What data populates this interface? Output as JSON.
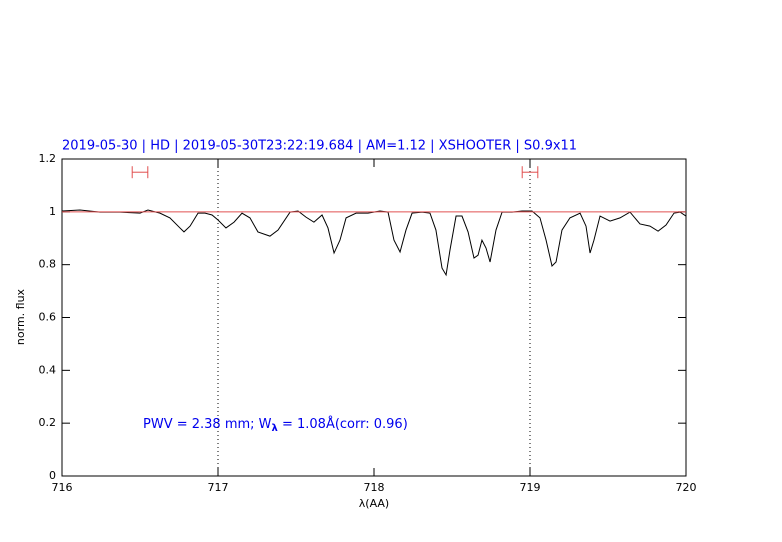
{
  "chart_data": {
    "type": "line",
    "title": "2019-05-30 | HD | 2019-05-30T23:22:19.684 | AM=1.12 | XSHOOTER | S0.9x11",
    "x_label": "λ(AA)",
    "y_label": "norm. flux",
    "annotation": [
      "PWV = 2.38 mm; W",
      "λ",
      " = 1.08Å(corr: 0.96)"
    ],
    "xlim": [
      716,
      720
    ],
    "ylim": [
      0,
      1.2
    ],
    "xticks": [
      716,
      717,
      718,
      719,
      720
    ],
    "yticks": [
      0,
      0.2,
      0.4,
      0.6,
      0.8,
      1,
      1.2
    ],
    "vlines": [
      717,
      719
    ],
    "intervals": [
      {
        "x": [
          716.45,
          716.55
        ],
        "y": 1.15,
        "color": "#e05050"
      },
      {
        "x": [
          718.95,
          719.05
        ],
        "y": 1.15,
        "color": "#e05050"
      }
    ],
    "series": [
      {
        "color": "#000000",
        "x": [
          716.0,
          716.115,
          716.244,
          716.372,
          716.5,
          716.551,
          716.628,
          716.692,
          716.756,
          716.782,
          716.821,
          716.872,
          716.917,
          716.962,
          717.0,
          717.051,
          717.103,
          717.154,
          717.205,
          717.256,
          717.333,
          717.385,
          717.462,
          717.513,
          717.564,
          717.615,
          717.667,
          717.705,
          717.744,
          717.782,
          717.821,
          717.885,
          717.962,
          718.038,
          718.09,
          718.128,
          718.167,
          718.205,
          718.244,
          718.308,
          718.359,
          718.397,
          718.436,
          718.462,
          718.487,
          718.526,
          718.564,
          718.603,
          718.641,
          718.667,
          718.692,
          718.718,
          718.744,
          718.782,
          718.821,
          718.885,
          718.949,
          719.013,
          719.064,
          719.103,
          719.141,
          719.167,
          719.205,
          719.256,
          719.321,
          719.359,
          719.385,
          719.41,
          719.449,
          719.513,
          719.577,
          719.641,
          719.705,
          719.769,
          719.821,
          719.872,
          719.923,
          719.962,
          720.0
        ],
        "values": [
          1.003,
          1.007,
          0.999,
          0.999,
          0.995,
          1.007,
          0.995,
          0.977,
          0.939,
          0.924,
          0.946,
          0.995,
          0.995,
          0.988,
          0.969,
          0.939,
          0.961,
          0.995,
          0.977,
          0.924,
          0.908,
          0.931,
          0.999,
          1.003,
          0.98,
          0.961,
          0.988,
          0.939,
          0.844,
          0.893,
          0.977,
          0.995,
          0.995,
          1.003,
          0.999,
          0.893,
          0.848,
          0.931,
          0.995,
          0.999,
          0.995,
          0.931,
          0.787,
          0.761,
          0.855,
          0.984,
          0.984,
          0.924,
          0.825,
          0.836,
          0.893,
          0.863,
          0.81,
          0.931,
          0.999,
          0.999,
          1.003,
          1.003,
          0.977,
          0.893,
          0.795,
          0.81,
          0.931,
          0.977,
          0.995,
          0.946,
          0.844,
          0.893,
          0.984,
          0.965,
          0.977,
          0.999,
          0.954,
          0.946,
          0.927,
          0.95,
          0.995,
          0.999,
          0.984
        ]
      },
      {
        "color": "#e05050",
        "x": [
          716,
          720
        ],
        "values": [
          1,
          1
        ]
      }
    ]
  }
}
